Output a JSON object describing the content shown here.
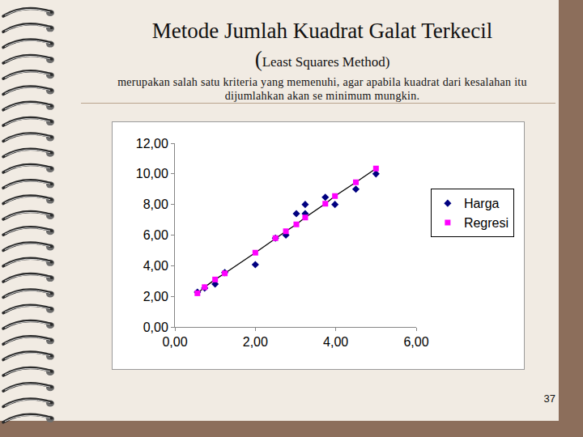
{
  "slide": {
    "title": "Metode Jumlah Kuadrat Galat Terkecil",
    "title_note": "(Least Squares Method)",
    "description": "merupakan salah satu kriteria yang memenuhi, agar apabila kuadrat dari kesalahan itu dijumlahkan akan se minimum mungkin.",
    "page_number": "37"
  },
  "chart_data": {
    "type": "scatter",
    "xlim": [
      0,
      6
    ],
    "xticks": [
      {
        "value": 0,
        "label": "0,00"
      },
      {
        "value": 2,
        "label": "2,00"
      },
      {
        "value": 4,
        "label": "4,00"
      },
      {
        "value": 6,
        "label": "6,00"
      }
    ],
    "ylim": [
      0,
      12
    ],
    "yticks": [
      {
        "value": 0,
        "label": "0,00"
      },
      {
        "value": 2,
        "label": "2,00"
      },
      {
        "value": 4,
        "label": "4,00"
      },
      {
        "value": 6,
        "label": "6,00"
      },
      {
        "value": 8,
        "label": "8,00"
      },
      {
        "value": 10,
        "label": "10,00"
      },
      {
        "value": 12,
        "label": "12,00"
      }
    ],
    "grid": false,
    "legend": "right",
    "series": [
      {
        "name": "Harga",
        "color": "#000080",
        "marker": "diamond",
        "x": [
          0.56,
          0.74,
          1.0,
          1.24,
          2.0,
          2.5,
          2.76,
          3.02,
          3.24,
          3.24,
          3.74,
          3.98,
          4.5,
          5.0
        ],
        "values": [
          2.27,
          2.54,
          2.8,
          3.55,
          4.07,
          5.8,
          6.0,
          7.4,
          8.0,
          7.4,
          8.47,
          8.0,
          9.0,
          10.0
        ]
      },
      {
        "name": "Regresi",
        "color": "#ff00ff",
        "marker": "square",
        "line_style": "solid",
        "x": [
          0.56,
          0.74,
          1.0,
          1.24,
          2.0,
          2.5,
          2.76,
          3.02,
          3.24,
          3.74,
          3.98,
          4.5,
          5.0
        ],
        "values": [
          2.2,
          2.6,
          3.1,
          3.5,
          4.85,
          5.8,
          6.25,
          6.7,
          7.15,
          8.05,
          8.55,
          9.45,
          10.35
        ]
      }
    ]
  }
}
